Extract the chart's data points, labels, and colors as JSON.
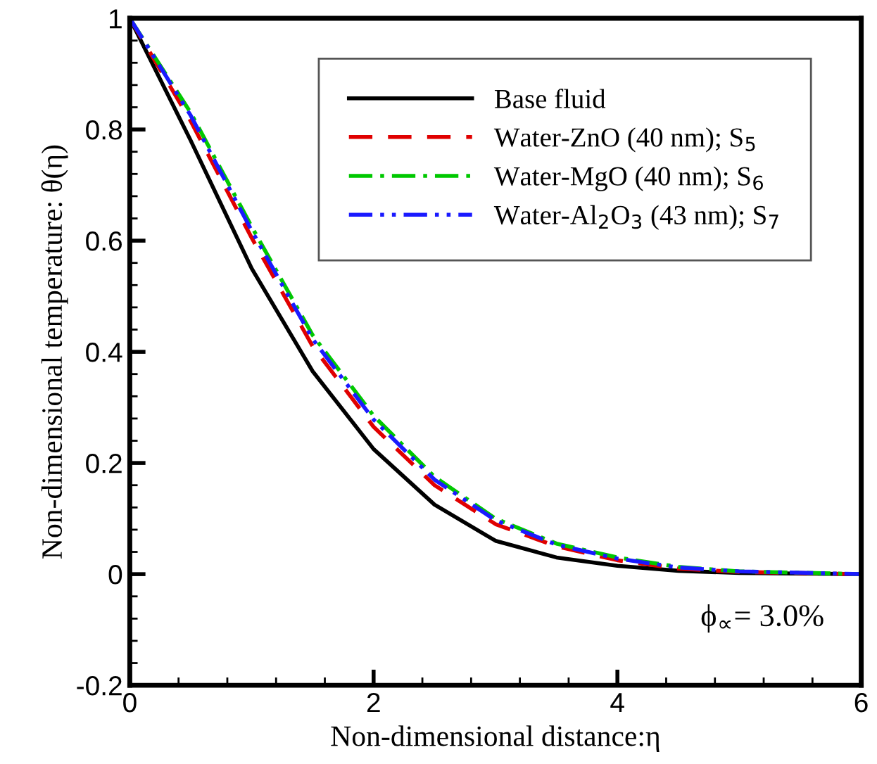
{
  "chart_data": {
    "type": "line",
    "xlabel": "Non-dimensional distance:η",
    "ylabel": "Non-dimensional temperature: θ(η)",
    "x": [
      0,
      0.5,
      1,
      1.5,
      2,
      2.5,
      3,
      3.5,
      4,
      4.5,
      5,
      6
    ],
    "series": [
      {
        "name": "Base fluid",
        "color": "#000000",
        "line_style": "solid",
        "values": [
          1,
          0.78,
          0.55,
          0.365,
          0.225,
          0.125,
          0.06,
          0.03,
          0.015,
          0.006,
          0.002,
          0
        ]
      },
      {
        "name": "Water-ZnO (40 nm); S$_{5}$",
        "color": "#e00000",
        "line_style": "dashed",
        "values": [
          1,
          0.815,
          0.605,
          0.41,
          0.265,
          0.16,
          0.09,
          0.05,
          0.025,
          0.01,
          0.004,
          0
        ]
      },
      {
        "name": "Water-MgO (40 nm); S$_{6}$",
        "color": "#00c800",
        "line_style": "dashdot",
        "values": [
          1,
          0.83,
          0.625,
          0.43,
          0.285,
          0.175,
          0.1,
          0.055,
          0.03,
          0.013,
          0.005,
          0
        ]
      },
      {
        "name": "Water-Al$_{2}$O$_{3}$ (43 nm); S$_{7}$",
        "color": "#1a1aff",
        "line_style": "dashdotdot",
        "values": [
          1,
          0.825,
          0.618,
          0.423,
          0.278,
          0.17,
          0.097,
          0.053,
          0.028,
          0.012,
          0.005,
          0
        ]
      }
    ],
    "annotations": [
      "ϕ$_{∝}$= 3.0%"
    ],
    "xlim": [
      0,
      6
    ],
    "xticks": [
      0,
      2,
      4,
      6
    ],
    "ylim": [
      -0.2,
      1
    ],
    "yticks": [
      -0.2,
      0,
      0.2,
      0.4,
      0.6,
      0.8,
      1
    ],
    "legend": "top right",
    "grid": false,
    "marker": "none"
  }
}
